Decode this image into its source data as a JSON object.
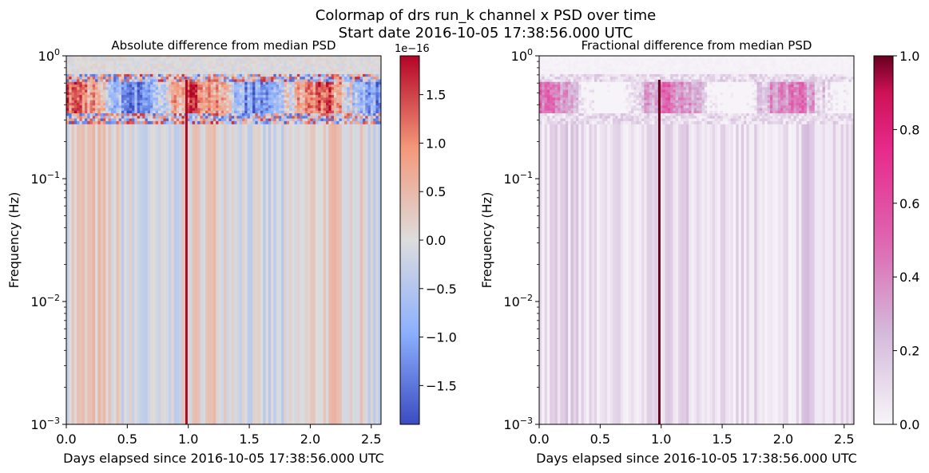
{
  "figure": {
    "suptitle_line1": "Colormap of drs run_k channel x PSD over time",
    "suptitle_line2": "Start date 2016-10-05 17:38:56.000 UTC"
  },
  "chart_data": [
    {
      "type": "heatmap",
      "title": "Absolute difference from median PSD",
      "xlabel": "Days elapsed since 2016-10-05 17:38:56.000 UTC",
      "ylabel": "Frequency (Hz)",
      "xlim": [
        0.0,
        2.58
      ],
      "ylim": [
        0.001,
        1.0
      ],
      "yscale": "log",
      "xticks": [
        "0.0",
        "0.5",
        "1.0",
        "1.5",
        "2.0",
        "2.5"
      ],
      "xtick_values": [
        0.0,
        0.5,
        1.0,
        1.5,
        2.0,
        2.5
      ],
      "ytick_labels": [
        "10^-3",
        "10^-2",
        "10^-1",
        "10^0"
      ],
      "ytick_values": [
        0.001,
        0.01,
        0.1,
        1.0
      ],
      "colorbar": {
        "colormap": "coolwarm",
        "vmin": -1.9e-16,
        "vmax": 1.9e-16,
        "offset_label": "1e−16",
        "tick_labels": [
          "−1.5",
          "−1.0",
          "−0.5",
          "0.0",
          "0.5",
          "1.0",
          "1.5"
        ],
        "tick_values": [
          -1.5,
          -1.0,
          -0.5,
          0.0,
          0.5,
          1.0,
          1.5
        ]
      }
    },
    {
      "type": "heatmap",
      "title": "Fractional difference from median PSD",
      "xlabel": "Days elapsed since 2016-10-05 17:38:56.000 UTC",
      "ylabel": "Frequency (Hz)",
      "xlim": [
        0.0,
        2.58
      ],
      "ylim": [
        0.001,
        1.0
      ],
      "yscale": "log",
      "xticks": [
        "0.0",
        "0.5",
        "1.0",
        "1.5",
        "2.0",
        "2.5"
      ],
      "xtick_values": [
        0.0,
        0.5,
        1.0,
        1.5,
        2.0,
        2.5
      ],
      "ytick_labels": [
        "10^-3",
        "10^-2",
        "10^-1",
        "10^0"
      ],
      "ytick_values": [
        0.001,
        0.01,
        0.1,
        1.0
      ],
      "colorbar": {
        "colormap": "PuRd",
        "vmin": 0.0,
        "vmax": 1.0,
        "offset_label": "",
        "tick_labels": [
          "0.0",
          "0.2",
          "0.4",
          "0.6",
          "0.8",
          "1.0"
        ],
        "tick_values": [
          0.0,
          0.2,
          0.4,
          0.6,
          0.8,
          1.0
        ]
      }
    }
  ]
}
